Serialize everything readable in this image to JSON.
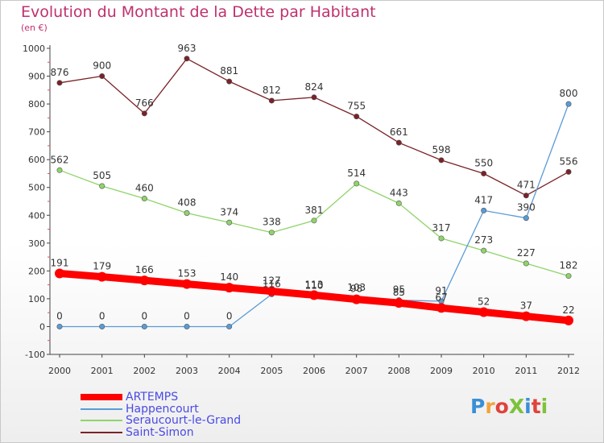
{
  "title": "Evolution du Montant de la Dette par Habitant",
  "subtitle": "(en €)",
  "logo_text": "ProXiti",
  "chart_data": {
    "type": "line",
    "title": "Evolution du Montant de la Dette par Habitant",
    "subtitle": "(en €)",
    "x": [
      2000,
      2001,
      2002,
      2003,
      2004,
      2005,
      2006,
      2007,
      2008,
      2009,
      2010,
      2011,
      2012
    ],
    "x_tick_labels": [
      "2000",
      "2001",
      "2002",
      "2003",
      "2004",
      "2005",
      "2006",
      "2007",
      "2008",
      "2009",
      "2010",
      "2011",
      "2012"
    ],
    "ylim": [
      -100,
      1000
    ],
    "y_ticks": [
      -100,
      0,
      100,
      200,
      300,
      400,
      500,
      600,
      700,
      800,
      900,
      1000
    ],
    "y_tick_labels": [
      "-100",
      "0",
      "100",
      "200",
      "300",
      "400",
      "500",
      "600",
      "700",
      "800",
      "900",
      "1000"
    ],
    "grid": false,
    "legend_position": "bottom-left",
    "series": [
      {
        "name": "ARTEMPS",
        "color": "#ff0000",
        "values": [
          191,
          179,
          166,
          153,
          140,
          127,
          113,
          98,
          85,
          67,
          52,
          37,
          22
        ]
      },
      {
        "name": "Happencourt",
        "color": "#5a9bd5",
        "values": [
          0,
          0,
          0,
          0,
          0,
          116,
          110,
          103,
          95,
          91,
          417,
          390,
          800
        ]
      },
      {
        "name": "Seraucourt-le-Grand",
        "color": "#8fd46a",
        "values": [
          562,
          505,
          460,
          408,
          374,
          338,
          381,
          514,
          443,
          317,
          273,
          227,
          182
        ]
      },
      {
        "name": "Saint-Simon",
        "color": "#7a2228",
        "values": [
          876,
          900,
          766,
          963,
          881,
          812,
          824,
          755,
          661,
          598,
          550,
          471,
          556
        ]
      }
    ]
  }
}
